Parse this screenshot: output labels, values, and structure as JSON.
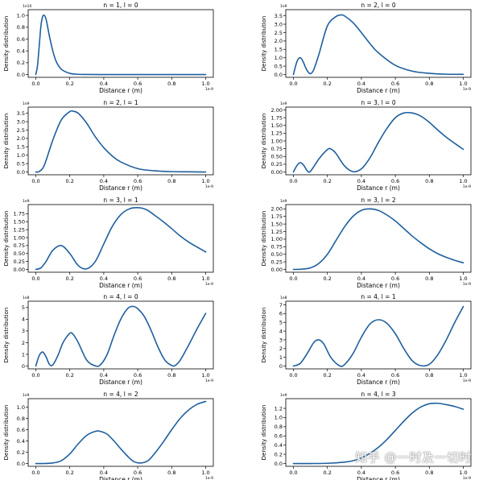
{
  "chart_data": [
    {
      "type": "line",
      "title": "n = 1, l = 0",
      "xlabel": "Distance r (m)",
      "ylabel": "Density distribution",
      "x_offset": "1e-9",
      "y_offset": "1e10",
      "xlim": [
        0,
        1
      ],
      "ylim": [
        0,
        1.05
      ],
      "xticks": [
        "0.0",
        "0.2",
        "0.4",
        "0.6",
        "0.8",
        "1.0"
      ],
      "yticks": [
        "0.0",
        "0.2",
        "0.4",
        "0.6",
        "0.8",
        "1.0"
      ],
      "series": [
        {
          "name": "density",
          "x": [
            0,
            0.01,
            0.02,
            0.03,
            0.04,
            0.05,
            0.06,
            0.07,
            0.08,
            0.1,
            0.12,
            0.15,
            0.2,
            0.25,
            0.3,
            0.4,
            0.5,
            0.6,
            0.7,
            0.8,
            0.9,
            1.0
          ],
          "y": [
            0,
            0.15,
            0.48,
            0.82,
            0.98,
            1.0,
            0.94,
            0.8,
            0.65,
            0.4,
            0.22,
            0.09,
            0.02,
            0.004,
            0.001,
            0,
            0,
            0,
            0,
            0,
            0,
            0
          ]
        }
      ]
    },
    {
      "type": "line",
      "title": "n = 2, l = 0",
      "xlabel": "Distance r (m)",
      "ylabel": "Density distribution",
      "x_offset": "1e-9",
      "y_offset": "1e9",
      "xlim": [
        0,
        1
      ],
      "ylim": [
        0,
        3.7
      ],
      "xticks": [
        "0.0",
        "0.2",
        "0.4",
        "0.6",
        "0.8",
        "1.0"
      ],
      "yticks": [
        "0.0",
        "0.5",
        "1.0",
        "1.5",
        "2.0",
        "2.5",
        "3.0",
        "3.5"
      ],
      "series": [
        {
          "name": "density",
          "x": [
            0,
            0.01,
            0.02,
            0.03,
            0.04,
            0.05,
            0.06,
            0.08,
            0.1,
            0.12,
            0.15,
            0.2,
            0.25,
            0.28,
            0.3,
            0.35,
            0.4,
            0.45,
            0.5,
            0.6,
            0.7,
            0.8,
            0.9,
            1.0
          ],
          "y": [
            0,
            0.4,
            0.75,
            0.95,
            1.0,
            0.9,
            0.7,
            0.25,
            0.05,
            0.3,
            1.2,
            2.9,
            3.45,
            3.55,
            3.5,
            3.1,
            2.5,
            1.85,
            1.3,
            0.55,
            0.2,
            0.07,
            0.02,
            0.01
          ]
        }
      ]
    },
    {
      "type": "line",
      "title": "n = 2, l = 1",
      "xlabel": "Distance r (m)",
      "ylabel": "Density distribution",
      "x_offset": "1e-9",
      "y_offset": "1e9",
      "xlim": [
        0,
        1
      ],
      "ylim": [
        0,
        3.7
      ],
      "xticks": [
        "0.0",
        "0.2",
        "0.4",
        "0.6",
        "0.8",
        "1.0"
      ],
      "yticks": [
        "0.0",
        "0.5",
        "1.0",
        "1.5",
        "2.0",
        "2.5",
        "3.0",
        "3.5"
      ],
      "series": [
        {
          "name": "density",
          "x": [
            0,
            0.02,
            0.05,
            0.1,
            0.15,
            0.2,
            0.22,
            0.25,
            0.3,
            0.35,
            0.4,
            0.45,
            0.5,
            0.6,
            0.7,
            0.8,
            0.9,
            1.0
          ],
          "y": [
            0,
            0.03,
            0.4,
            1.9,
            3.1,
            3.6,
            3.62,
            3.5,
            2.9,
            2.1,
            1.45,
            0.95,
            0.6,
            0.2,
            0.07,
            0.02,
            0.01,
            0
          ]
        }
      ]
    },
    {
      "type": "line",
      "title": "n = 3, l = 0",
      "xlabel": "Distance r (m)",
      "ylabel": "Density distribution",
      "x_offset": "1e-9",
      "y_offset": "1e9",
      "xlim": [
        0,
        1
      ],
      "ylim": [
        0,
        2.0
      ],
      "xticks": [
        "0.0",
        "0.2",
        "0.4",
        "0.6",
        "0.8",
        "1.0"
      ],
      "yticks": [
        "0.00",
        "0.25",
        "0.50",
        "0.75",
        "1.00",
        "1.25",
        "1.50",
        "1.75",
        "2.00"
      ],
      "series": [
        {
          "name": "density",
          "x": [
            0,
            0.02,
            0.04,
            0.06,
            0.08,
            0.1,
            0.15,
            0.2,
            0.22,
            0.25,
            0.3,
            0.35,
            0.4,
            0.45,
            0.5,
            0.55,
            0.6,
            0.65,
            0.7,
            0.75,
            0.8,
            0.85,
            0.9,
            0.95,
            1.0
          ],
          "y": [
            0,
            0.2,
            0.3,
            0.22,
            0.05,
            0.02,
            0.42,
            0.72,
            0.74,
            0.6,
            0.2,
            0.01,
            0.1,
            0.45,
            0.95,
            1.4,
            1.75,
            1.9,
            1.9,
            1.8,
            1.6,
            1.35,
            1.12,
            0.92,
            0.73
          ]
        }
      ]
    },
    {
      "type": "line",
      "title": "n = 3, l = 1",
      "xlabel": "Distance r (m)",
      "ylabel": "Density distribution",
      "x_offset": "1e-9",
      "y_offset": "1e9",
      "xlim": [
        0,
        1
      ],
      "ylim": [
        0,
        1.95
      ],
      "xticks": [
        "0.0",
        "0.2",
        "0.4",
        "0.6",
        "0.8",
        "1.0"
      ],
      "yticks": [
        "0.00",
        "0.25",
        "0.50",
        "0.75",
        "1.00",
        "1.25",
        "1.50",
        "1.75"
      ],
      "series": [
        {
          "name": "density",
          "x": [
            0,
            0.03,
            0.06,
            0.1,
            0.15,
            0.2,
            0.25,
            0.3,
            0.35,
            0.4,
            0.45,
            0.5,
            0.55,
            0.6,
            0.65,
            0.7,
            0.75,
            0.8,
            0.85,
            0.9,
            0.95,
            1.0
          ],
          "y": [
            0,
            0.05,
            0.25,
            0.6,
            0.75,
            0.5,
            0.12,
            0.02,
            0.25,
            0.8,
            1.35,
            1.72,
            1.9,
            1.94,
            1.88,
            1.7,
            1.5,
            1.28,
            1.05,
            0.86,
            0.7,
            0.55
          ]
        }
      ]
    },
    {
      "type": "line",
      "title": "n = 3, l = 2",
      "xlabel": "Distance r (m)",
      "ylabel": "Density distribution",
      "x_offset": "1e-9",
      "y_offset": "1e9",
      "xlim": [
        0,
        1
      ],
      "ylim": [
        0,
        2.05
      ],
      "xticks": [
        "0.0",
        "0.2",
        "0.4",
        "0.6",
        "0.8",
        "1.0"
      ],
      "yticks": [
        "0.00",
        "0.25",
        "0.50",
        "0.75",
        "1.00",
        "1.25",
        "1.50",
        "1.75",
        "2.00"
      ],
      "series": [
        {
          "name": "density",
          "x": [
            0,
            0.05,
            0.1,
            0.15,
            0.2,
            0.25,
            0.3,
            0.35,
            0.4,
            0.45,
            0.5,
            0.55,
            0.6,
            0.65,
            0.7,
            0.75,
            0.8,
            0.85,
            0.9,
            0.95,
            1.0
          ],
          "y": [
            0,
            0.01,
            0.05,
            0.2,
            0.5,
            0.95,
            1.4,
            1.75,
            1.95,
            2.0,
            1.95,
            1.8,
            1.6,
            1.35,
            1.1,
            0.88,
            0.68,
            0.52,
            0.4,
            0.3,
            0.22
          ]
        }
      ]
    },
    {
      "type": "line",
      "title": "n = 4, l = 0",
      "xlabel": "Distance r (m)",
      "ylabel": "Density distribution",
      "x_offset": "1e-9",
      "y_offset": "1e8",
      "xlim": [
        0,
        1
      ],
      "ylim": [
        0,
        5.3
      ],
      "xticks": [
        "0.0",
        "0.2",
        "0.4",
        "0.6",
        "0.8",
        "1.0"
      ],
      "yticks": [
        "0",
        "1",
        "2",
        "3",
        "4",
        "5"
      ],
      "series": [
        {
          "name": "density",
          "x": [
            0,
            0.02,
            0.04,
            0.06,
            0.08,
            0.1,
            0.13,
            0.16,
            0.2,
            0.22,
            0.25,
            0.3,
            0.35,
            0.38,
            0.42,
            0.46,
            0.5,
            0.54,
            0.57,
            0.6,
            0.64,
            0.68,
            0.72,
            0.76,
            0.8,
            0.82,
            0.85,
            0.9,
            0.95,
            1.0
          ],
          "y": [
            0,
            0.9,
            1.2,
            0.8,
            0.15,
            0.1,
            0.9,
            2.0,
            2.8,
            2.7,
            2.0,
            0.5,
            0.02,
            0.1,
            1.0,
            2.6,
            4.0,
            4.9,
            5.1,
            4.9,
            4.2,
            3.0,
            1.6,
            0.5,
            0.05,
            0.05,
            0.5,
            1.8,
            3.2,
            4.5
          ]
        }
      ]
    },
    {
      "type": "line",
      "title": "n = 4, l = 1",
      "xlabel": "Distance r (m)",
      "ylabel": "Density distribution",
      "x_offset": "1e-9",
      "y_offset": "1e8",
      "xlim": [
        0,
        1
      ],
      "ylim": [
        0,
        7.1
      ],
      "xticks": [
        "0.0",
        "0.2",
        "0.4",
        "0.6",
        "0.8",
        "1.0"
      ],
      "yticks": [
        "0",
        "1",
        "2",
        "3",
        "4",
        "5",
        "6",
        "7"
      ],
      "series": [
        {
          "name": "density",
          "x": [
            0,
            0.04,
            0.08,
            0.12,
            0.15,
            0.18,
            0.22,
            0.27,
            0.3,
            0.35,
            0.4,
            0.45,
            0.5,
            0.55,
            0.6,
            0.65,
            0.7,
            0.75,
            0.8,
            0.85,
            0.9,
            0.95,
            1.0
          ],
          "y": [
            0,
            0.3,
            1.4,
            2.7,
            3.0,
            2.5,
            1.0,
            0.05,
            0.15,
            1.4,
            3.3,
            4.8,
            5.3,
            4.9,
            3.7,
            2.0,
            0.6,
            0.05,
            0.2,
            1.3,
            3.0,
            5.0,
            6.8
          ]
        }
      ]
    },
    {
      "type": "line",
      "title": "n = 4, l = 2",
      "xlabel": "Distance r (m)",
      "ylabel": "Density distribution",
      "x_offset": "1e-9",
      "y_offset": "1e9",
      "xlim": [
        0,
        1
      ],
      "ylim": [
        0,
        1.1
      ],
      "xticks": [
        "0.0",
        "0.2",
        "0.4",
        "0.6",
        "0.8",
        "1.0"
      ],
      "yticks": [
        "0.0",
        "0.2",
        "0.4",
        "0.6",
        "0.8",
        "1.0"
      ],
      "series": [
        {
          "name": "density",
          "x": [
            0,
            0.05,
            0.1,
            0.15,
            0.2,
            0.25,
            0.3,
            0.35,
            0.38,
            0.42,
            0.46,
            0.5,
            0.55,
            0.58,
            0.62,
            0.66,
            0.7,
            0.75,
            0.8,
            0.85,
            0.9,
            0.95,
            1.0
          ],
          "y": [
            0,
            0,
            0.01,
            0.05,
            0.17,
            0.35,
            0.5,
            0.57,
            0.57,
            0.52,
            0.4,
            0.26,
            0.1,
            0.03,
            0.01,
            0.05,
            0.18,
            0.38,
            0.6,
            0.8,
            0.95,
            1.05,
            1.1
          ]
        }
      ]
    },
    {
      "type": "line",
      "title": "n = 4, l = 3",
      "xlabel": "Distance r (m)",
      "ylabel": "Density distribution",
      "x_offset": "1e-9",
      "y_offset": "1e9",
      "xlim": [
        0,
        1
      ],
      "ylim": [
        0,
        1.35
      ],
      "xticks": [
        "0.0",
        "0.2",
        "0.4",
        "0.6",
        "0.8",
        "1.0"
      ],
      "yticks": [
        "0.0",
        "0.2",
        "0.4",
        "0.6",
        "0.8",
        "1.0",
        "1.2"
      ],
      "series": [
        {
          "name": "density",
          "x": [
            0,
            0.1,
            0.2,
            0.3,
            0.35,
            0.4,
            0.45,
            0.5,
            0.55,
            0.6,
            0.65,
            0.7,
            0.75,
            0.8,
            0.85,
            0.9,
            0.95,
            1.0
          ],
          "y": [
            0,
            0,
            0.005,
            0.03,
            0.06,
            0.12,
            0.22,
            0.35,
            0.52,
            0.72,
            0.92,
            1.1,
            1.23,
            1.3,
            1.31,
            1.28,
            1.24,
            1.18
          ]
        }
      ]
    }
  ],
  "watermark": "知乎 @一时及一切时",
  "colors": {
    "line": "#1f5f9e",
    "axis": "#000000",
    "background": "#ffffff"
  }
}
